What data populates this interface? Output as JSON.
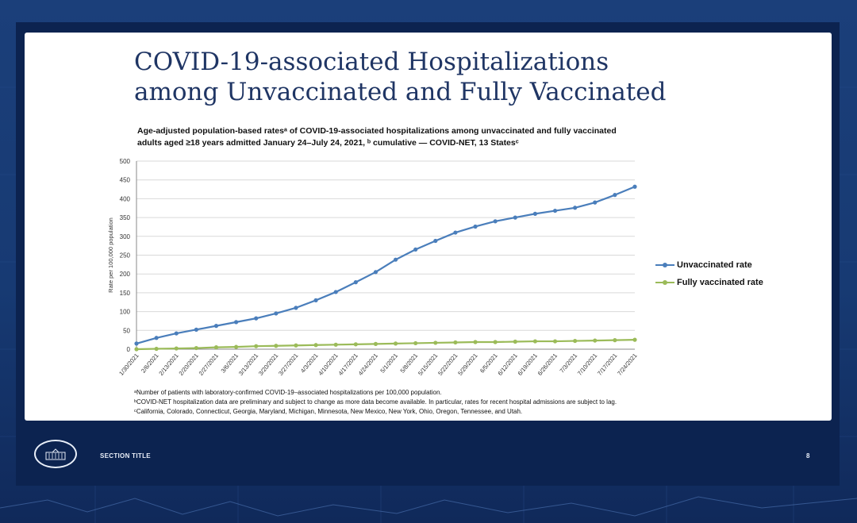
{
  "slide": {
    "title_line1": "COVID-19-associated Hospitalizations",
    "title_line2": "among Unvaccinated and Fully Vaccinated",
    "subtitle_line1": "Age-adjusted population-based ratesᵃ of COVID-19-associated hospitalizations among unvaccinated and fully vaccinated",
    "subtitle_line2": "adults aged ≥18 years admitted January 24–July 24, 2021, ᵇ cumulative — COVID-NET, 13 Statesᶜ"
  },
  "footnotes": {
    "a": "ᵃNumber of patients with laboratory-confirmed COVID-19–associated hospitalizations per 100,000 population.",
    "b": "ᵇCOVID-NET hospitalization data are preliminary and subject to change as more data become available. In particular, rates for recent hospital admissions are subject to lag.",
    "c": "ᶜCalifornia, Colorado, Connecticut, Georgia, Maryland, Michigan, Minnesota, New Mexico, New York, Ohio, Oregon, Tennessee, and Utah."
  },
  "footer": {
    "section_title": "SECTION TITLE",
    "page_number": "8"
  },
  "colors": {
    "unvaccinated": "#4a7ebb",
    "vaccinated": "#9bbb59",
    "title": "#1f3564"
  },
  "chart_data": {
    "type": "line",
    "ylabel": "Rate per 100,000 population",
    "xlabel": "",
    "ylim": [
      0,
      500
    ],
    "yticks": [
      0,
      50,
      100,
      150,
      200,
      250,
      300,
      350,
      400,
      450,
      500
    ],
    "grid": true,
    "legend_position": "right",
    "categories": [
      "1/30/2021",
      "2/6/2021",
      "2/13/2021",
      "2/20/2021",
      "2/27/2021",
      "3/6/2021",
      "3/13/2021",
      "3/20/2021",
      "3/27/2021",
      "4/3/2021",
      "4/10/2021",
      "4/17/2021",
      "4/24/2021",
      "5/1/2021",
      "5/8/2021",
      "5/15/2021",
      "5/22/2021",
      "5/29/2021",
      "6/5/2021",
      "6/12/2021",
      "6/19/2021",
      "6/26/2021",
      "7/3/2021",
      "7/10/2021",
      "7/17/2021",
      "7/24/2021"
    ],
    "series": [
      {
        "name": "Unvaccinated rate",
        "values": [
          15,
          30,
          42,
          52,
          62,
          72,
          82,
          95,
          110,
          130,
          152,
          178,
          205,
          238,
          265,
          288,
          310,
          326,
          340,
          350,
          360,
          368,
          376,
          390,
          410,
          432
        ]
      },
      {
        "name": "Fully vaccinated rate",
        "values": [
          0,
          1,
          2,
          3,
          5,
          6,
          8,
          9,
          10,
          11,
          12,
          13,
          14,
          15,
          16,
          17,
          18,
          19,
          19,
          20,
          21,
          21,
          22,
          23,
          24,
          25
        ]
      }
    ]
  }
}
